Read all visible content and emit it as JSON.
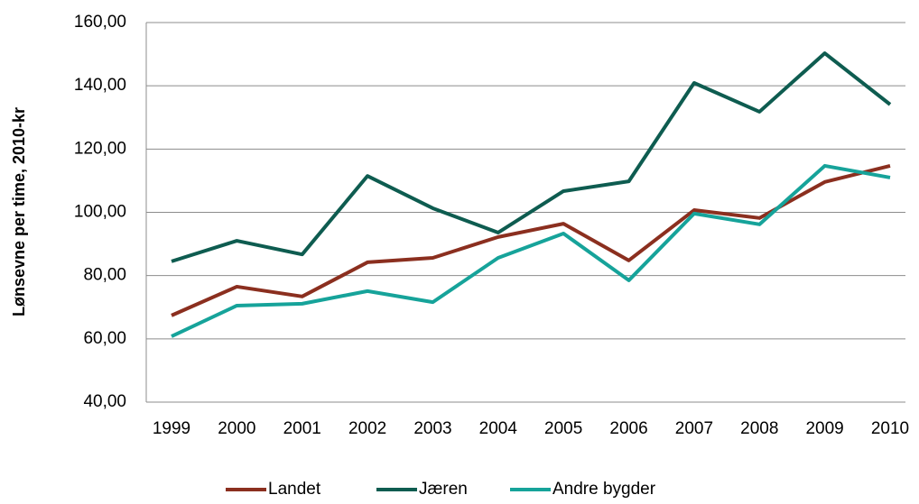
{
  "chart_data": {
    "type": "line",
    "ylabel": "Lønsevne per time, 2010-kr",
    "categories": [
      "1999",
      "2000",
      "2001",
      "2002",
      "2003",
      "2004",
      "2005",
      "2006",
      "2007",
      "2008",
      "2009",
      "2010"
    ],
    "series": [
      {
        "name": "Landet",
        "color": "#8b2f1f",
        "values": [
          67.4,
          76.5,
          73.4,
          84.2,
          85.6,
          92.2,
          96.4,
          84.8,
          100.7,
          98.2,
          109.6,
          114.7
        ]
      },
      {
        "name": "Jæren",
        "color": "#0e5c50",
        "values": [
          84.5,
          91.0,
          86.7,
          111.5,
          101.3,
          93.6,
          106.7,
          109.8,
          140.9,
          131.8,
          150.3,
          134.1
        ]
      },
      {
        "name": "Andre bygder",
        "color": "#16a39a",
        "values": [
          60.8,
          70.5,
          71.1,
          75.1,
          71.6,
          85.6,
          93.3,
          78.5,
          99.6,
          96.2,
          114.7,
          111.0
        ]
      }
    ],
    "ylim": [
      40,
      160
    ],
    "yticks": [
      {
        "value": 40,
        "label": "40,00"
      },
      {
        "value": 60,
        "label": "60,00"
      },
      {
        "value": 80,
        "label": "80,00"
      },
      {
        "value": 100,
        "label": "100,00"
      },
      {
        "value": 120,
        "label": "120,00"
      },
      {
        "value": 140,
        "label": "140,00"
      },
      {
        "value": 160,
        "label": "160,00"
      }
    ],
    "grid": true,
    "legend": "bottom"
  }
}
